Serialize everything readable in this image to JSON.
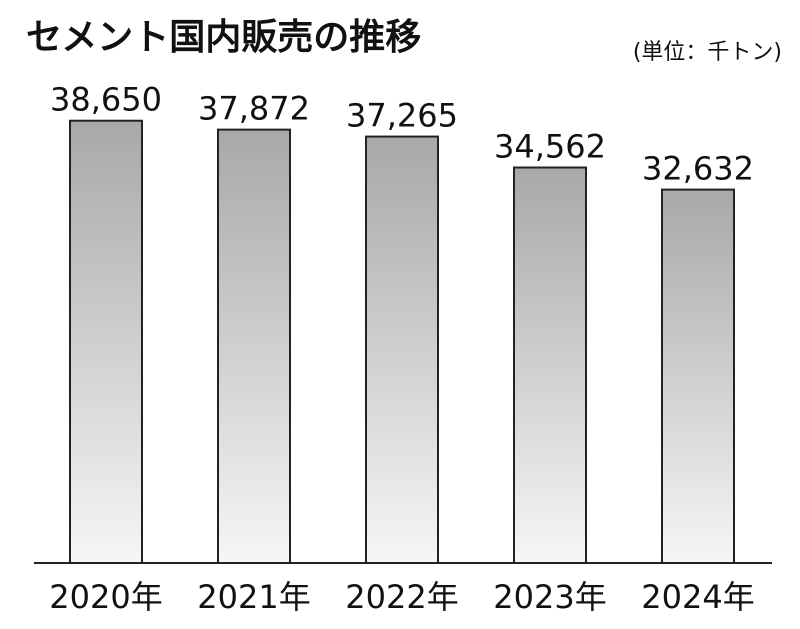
{
  "chart_data": {
    "type": "bar",
    "title": "セメント国内販売の推移",
    "unit": "(単位：千トン)",
    "categories": [
      "2020年",
      "2021年",
      "2022年",
      "2023年",
      "2024年"
    ],
    "values": [
      38650,
      37872,
      37265,
      34562,
      32632
    ],
    "value_labels": [
      "38,650",
      "37,872",
      "37,265",
      "34,562",
      "32,632"
    ],
    "ylim": [
      0,
      39500
    ],
    "grid": false,
    "legend": "none",
    "colors": {
      "bar_top": "#a8a8a8",
      "bar_bottom": "#f6f6f6",
      "bar_stroke": "#222222",
      "text": "#111111"
    }
  }
}
